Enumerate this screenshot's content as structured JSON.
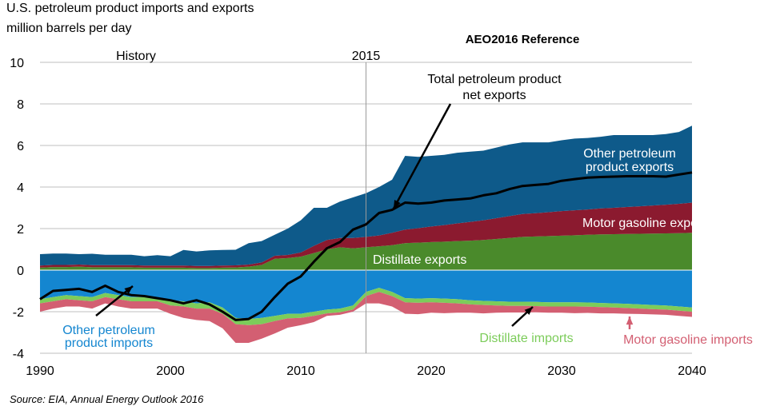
{
  "header": {
    "title": "U.S. petroleum product imports and exports",
    "units": "million barrels per day"
  },
  "footer": {
    "source": "Source:  EIA, Annual Energy Outlook 2016"
  },
  "chart_data": {
    "type": "area",
    "title": "U.S. petroleum product imports and exports",
    "subtitle": "million barrels per day",
    "xlim": [
      1990,
      2040
    ],
    "ylim": [
      -4,
      10
    ],
    "x_ticks": [
      1990,
      2000,
      2010,
      2020,
      2030,
      2040
    ],
    "y_ticks": [
      -4,
      -2,
      0,
      2,
      4,
      6,
      8,
      10
    ],
    "grid": true,
    "divider": {
      "x": 2015,
      "label": "2015",
      "left_label": "History",
      "right_label": "AEO2016 Reference"
    },
    "x": [
      1990,
      1991,
      1992,
      1993,
      1994,
      1995,
      1996,
      1997,
      1998,
      1999,
      2000,
      2001,
      2002,
      2003,
      2004,
      2005,
      2006,
      2007,
      2008,
      2009,
      2010,
      2011,
      2012,
      2013,
      2014,
      2015,
      2016,
      2017,
      2018,
      2019,
      2020,
      2021,
      2022,
      2023,
      2024,
      2025,
      2026,
      2027,
      2028,
      2029,
      2030,
      2031,
      2032,
      2033,
      2034,
      2035,
      2036,
      2037,
      2038,
      2039,
      2040
    ],
    "stacked_positive": [
      {
        "name": "Distillate exports",
        "color": "#4a8a2b",
        "values": [
          0.12,
          0.15,
          0.15,
          0.17,
          0.14,
          0.14,
          0.14,
          0.14,
          0.12,
          0.12,
          0.12,
          0.12,
          0.1,
          0.1,
          0.12,
          0.13,
          0.17,
          0.25,
          0.55,
          0.58,
          0.65,
          0.82,
          1.0,
          1.1,
          1.05,
          1.1,
          1.15,
          1.2,
          1.3,
          1.32,
          1.35,
          1.37,
          1.4,
          1.42,
          1.45,
          1.5,
          1.55,
          1.6,
          1.62,
          1.64,
          1.66,
          1.68,
          1.7,
          1.72,
          1.73,
          1.74,
          1.75,
          1.76,
          1.77,
          1.78,
          1.8
        ]
      },
      {
        "name": "Motor gasoline exports",
        "color": "#8b1a2f",
        "values": [
          0.1,
          0.1,
          0.1,
          0.1,
          0.1,
          0.1,
          0.1,
          0.1,
          0.1,
          0.1,
          0.1,
          0.1,
          0.1,
          0.1,
          0.1,
          0.1,
          0.1,
          0.12,
          0.14,
          0.15,
          0.2,
          0.35,
          0.45,
          0.45,
          0.5,
          0.5,
          0.52,
          0.6,
          0.65,
          0.7,
          0.75,
          0.8,
          0.85,
          0.9,
          0.95,
          1.0,
          1.05,
          1.1,
          1.12,
          1.15,
          1.18,
          1.2,
          1.22,
          1.25,
          1.27,
          1.3,
          1.32,
          1.35,
          1.38,
          1.41,
          1.45
        ]
      },
      {
        "name": "Other petroleum product exports",
        "color": "#0e5a8a",
        "values": [
          0.55,
          0.55,
          0.55,
          0.5,
          0.55,
          0.5,
          0.5,
          0.5,
          0.45,
          0.5,
          0.45,
          0.75,
          0.7,
          0.75,
          0.75,
          0.75,
          1.03,
          1.03,
          1.01,
          1.27,
          1.55,
          1.83,
          1.55,
          1.75,
          1.95,
          2.1,
          2.33,
          2.55,
          3.55,
          3.43,
          3.4,
          3.38,
          3.4,
          3.38,
          3.35,
          3.4,
          3.45,
          3.45,
          3.41,
          3.36,
          3.41,
          3.45,
          3.44,
          3.45,
          3.5,
          3.46,
          3.43,
          3.39,
          3.4,
          3.46,
          3.7
        ]
      }
    ],
    "stacked_negative": [
      {
        "name": "Other petroleum product imports",
        "color": "#1486d0",
        "values": [
          -1.4,
          -1.3,
          -1.2,
          -1.25,
          -1.3,
          -1.1,
          -1.2,
          -1.3,
          -1.3,
          -1.3,
          -1.45,
          -1.5,
          -1.6,
          -1.55,
          -1.8,
          -2.3,
          -2.35,
          -2.3,
          -2.2,
          -2.1,
          -2.1,
          -2.0,
          -1.9,
          -1.85,
          -1.7,
          -1.05,
          -0.85,
          -1.05,
          -1.35,
          -1.37,
          -1.35,
          -1.37,
          -1.4,
          -1.45,
          -1.48,
          -1.5,
          -1.52,
          -1.52,
          -1.53,
          -1.55,
          -1.55,
          -1.55,
          -1.56,
          -1.58,
          -1.6,
          -1.62,
          -1.65,
          -1.68,
          -1.7,
          -1.75,
          -1.8
        ]
      },
      {
        "name": "Distillate imports",
        "color": "#7ccc5a",
        "values": [
          -0.2,
          -0.2,
          -0.2,
          -0.2,
          -0.2,
          -0.2,
          -0.2,
          -0.2,
          -0.2,
          -0.2,
          -0.25,
          -0.25,
          -0.25,
          -0.3,
          -0.3,
          -0.3,
          -0.3,
          -0.3,
          -0.25,
          -0.22,
          -0.2,
          -0.2,
          -0.18,
          -0.18,
          -0.2,
          -0.2,
          -0.2,
          -0.2,
          -0.2,
          -0.2,
          -0.2,
          -0.2,
          -0.2,
          -0.2,
          -0.2,
          -0.2,
          -0.2,
          -0.2,
          -0.2,
          -0.2,
          -0.2,
          -0.2,
          -0.2,
          -0.2,
          -0.2,
          -0.2,
          -0.2,
          -0.2,
          -0.2,
          -0.2,
          -0.2
        ]
      },
      {
        "name": "Motor gasoline imports",
        "color": "#d35f72",
        "values": [
          -0.4,
          -0.35,
          -0.35,
          -0.3,
          -0.35,
          -0.3,
          -0.35,
          -0.35,
          -0.35,
          -0.35,
          -0.4,
          -0.55,
          -0.55,
          -0.6,
          -0.7,
          -0.9,
          -0.85,
          -0.7,
          -0.6,
          -0.45,
          -0.35,
          -0.3,
          -0.12,
          -0.12,
          -0.1,
          -0.35,
          -0.55,
          -0.5,
          -0.55,
          -0.55,
          -0.5,
          -0.5,
          -0.45,
          -0.4,
          -0.4,
          -0.35,
          -0.32,
          -0.32,
          -0.3,
          -0.3,
          -0.3,
          -0.32,
          -0.3,
          -0.3,
          -0.28,
          -0.28,
          -0.26,
          -0.25,
          -0.25,
          -0.25,
          -0.25
        ]
      }
    ],
    "line": {
      "name": "Total petroleum product net exports",
      "color": "#000000",
      "values": [
        -1.4,
        -1.0,
        -0.95,
        -0.9,
        -1.05,
        -0.75,
        -1.05,
        -1.2,
        -1.25,
        -1.35,
        -1.45,
        -1.6,
        -1.45,
        -1.65,
        -2.0,
        -2.4,
        -2.35,
        -2.0,
        -1.3,
        -0.65,
        -0.3,
        0.4,
        1.05,
        1.35,
        1.95,
        2.2,
        2.75,
        2.9,
        3.25,
        3.2,
        3.25,
        3.35,
        3.4,
        3.45,
        3.6,
        3.7,
        3.9,
        4.05,
        4.1,
        4.15,
        4.3,
        4.38,
        4.45,
        4.48,
        4.5,
        4.52,
        4.52,
        4.52,
        4.5,
        4.6,
        4.7
      ]
    },
    "labels": {
      "other_exports": [
        "Other petroleum",
        "product exports"
      ],
      "gasoline_exports": "Motor gasoline exports",
      "distillate_exports": "Distillate exports",
      "net_exports": [
        "Total petroleum product",
        "net exports"
      ],
      "other_imports": [
        "Other petroleum",
        "product imports"
      ],
      "distillate_imports": "Distillate imports",
      "gasoline_imports": "Motor gasoline imports"
    },
    "label_colors": {
      "other_imports": "#1486d0",
      "distillate_imports": "#7ccc5a",
      "gasoline_imports": "#d35f72",
      "dark": "#ffffff",
      "black": "#000000"
    }
  }
}
